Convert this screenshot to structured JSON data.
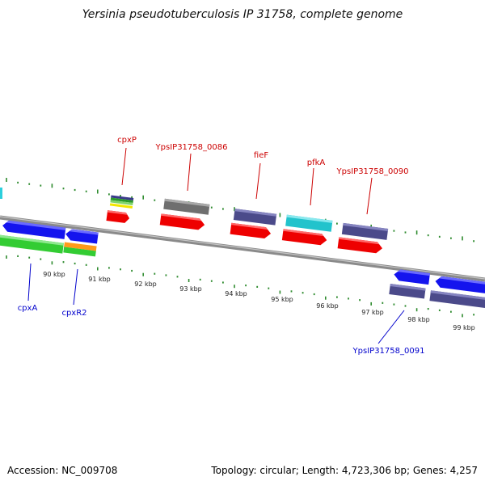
{
  "title": "Yersinia pseudotuberculosis IP 31758, complete genome",
  "footer": {
    "accession": "Accession: NC_009708",
    "summary": "Topology: circular; Length: 4,723,306 bp; Genes: 4,257"
  },
  "colors": {
    "forward_label": "#cc0000",
    "reverse_label": "#0000cc",
    "tick": "#2e8b2e",
    "backbone": "#8a8a8a"
  },
  "scale_labels": [
    "90 kbp",
    "91 kbp",
    "92 kbp",
    "93 kbp",
    "94 kbp",
    "95 kbp",
    "96 kbp",
    "97 kbp",
    "98 kbp",
    "99 kbp"
  ],
  "forward_gene_labels": [
    "cpxP",
    "YpsIP31758_0086",
    "fieF",
    "pfkA",
    "YpsIP31758_0090"
  ],
  "reverse_gene_labels": [
    "cpxA",
    "cpxR2",
    "YpsIP31758_0091"
  ]
}
